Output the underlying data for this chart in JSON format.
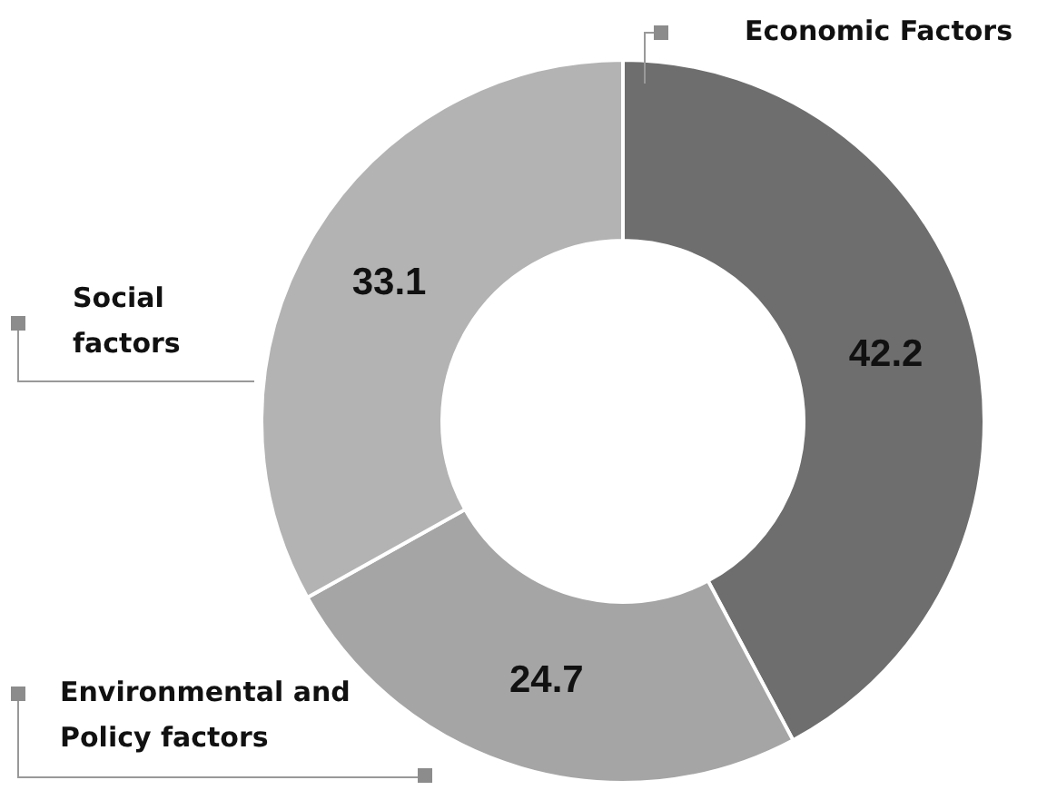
{
  "chart_data": {
    "type": "donut",
    "categories": [
      "Economic Factors",
      "Environmental and Policy factors",
      "Social factors"
    ],
    "values": [
      42.2,
      24.7,
      33.1
    ],
    "colors": [
      "#6e6e6e",
      "#a5a5a5",
      "#b3b3b3"
    ],
    "data_labels": true,
    "legend": false
  }
}
